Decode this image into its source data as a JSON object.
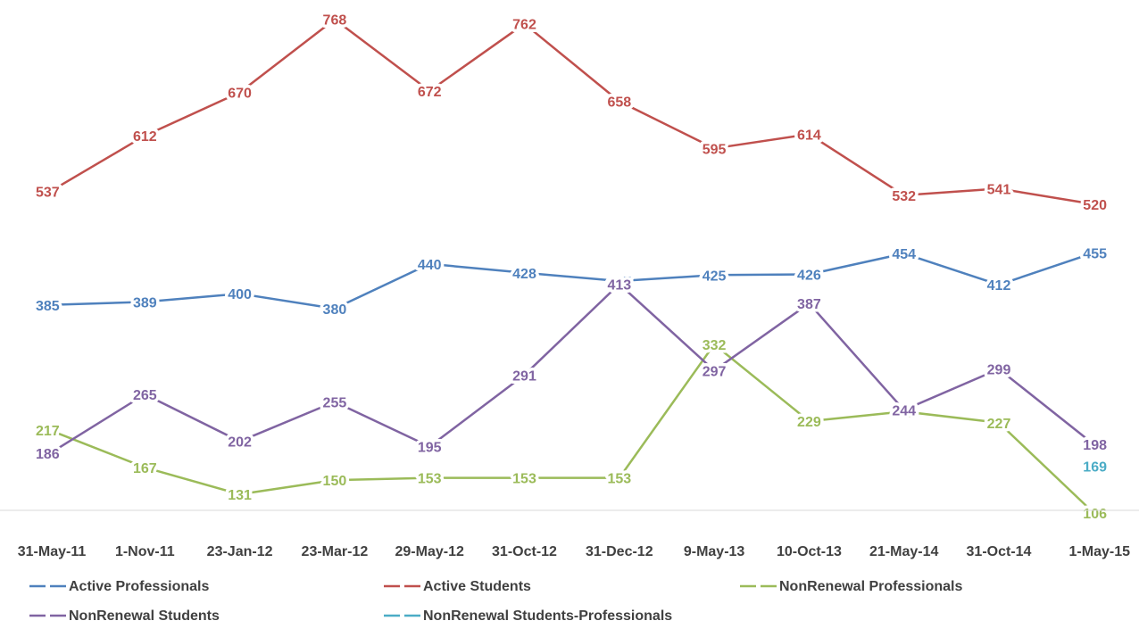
{
  "chart_data": {
    "type": "line",
    "categories": [
      "31-May-11",
      "1-Nov-11",
      "23-Jan-12",
      "23-Mar-12",
      "29-May-12",
      "31-Oct-12",
      "31-Dec-12",
      "9-May-13",
      "10-Oct-13",
      "21-May-14",
      "31-Oct-14",
      "1-May-15"
    ],
    "ylim": [
      0,
      800
    ],
    "grid": false,
    "legend_position": "bottom",
    "series": [
      {
        "name": "Active Professionals",
        "color": "#4F81BD",
        "values": [
          385,
          389,
          400,
          380,
          440,
          428,
          417,
          425,
          426,
          454,
          412,
          455
        ]
      },
      {
        "name": "Active Students",
        "color": "#C0504D",
        "values": [
          537,
          612,
          670,
          768,
          672,
          762,
          658,
          595,
          614,
          532,
          541,
          520
        ]
      },
      {
        "name": "NonRenewal Professionals",
        "color": "#9BBB59",
        "values": [
          217,
          167,
          131,
          150,
          153,
          153,
          153,
          332,
          229,
          242,
          227,
          106
        ]
      },
      {
        "name": "NonRenewal Students",
        "color": "#8064A2",
        "values": [
          186,
          265,
          202,
          255,
          195,
          291,
          413,
          297,
          387,
          244,
          299,
          198
        ]
      },
      {
        "name": "NonRenewal Students-Professionals",
        "color": "#4BACC6",
        "values": [
          null,
          null,
          null,
          null,
          null,
          null,
          null,
          null,
          null,
          null,
          null,
          169
        ]
      }
    ]
  }
}
